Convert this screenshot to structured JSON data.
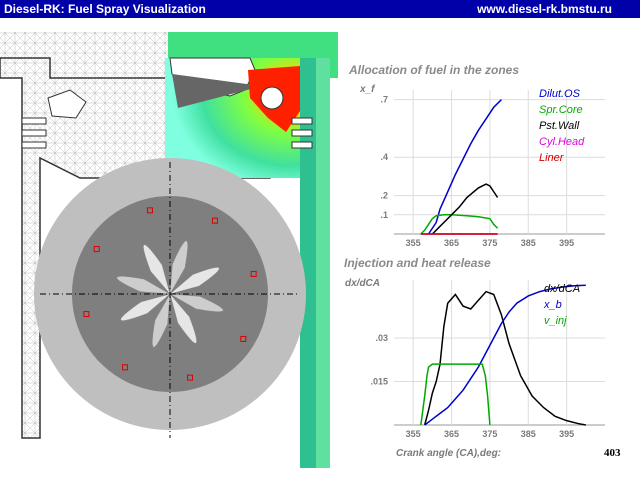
{
  "window": {
    "title": "Diesel-RK: Fuel Spray Visualization",
    "url": "www.diesel-rk.bmstu.ru"
  },
  "status": {
    "current_angle": "403"
  },
  "colors": {
    "titlebar": "#0000a8",
    "dilut_os": "#0000cc",
    "spr_core": "#00aa00",
    "pst_wall": "#000000",
    "cyl_head": "#dd00dd",
    "liner": "#cc0000"
  },
  "chart_data": [
    {
      "type": "line",
      "title": "Allocation of fuel in the zones",
      "xlabel": "",
      "ylabel": "x_f",
      "xlim": [
        350,
        405
      ],
      "ylim": [
        0,
        0.75
      ],
      "x_ticks": [
        "355",
        "365",
        "375",
        "385",
        "395"
      ],
      "y_ticks": [
        ".1",
        ".2",
        ".4",
        ".7"
      ],
      "grid": true,
      "legend_position": "top-right",
      "series": [
        {
          "name": "Dilut.OS",
          "color": "#0000cc",
          "x": [
            359,
            360,
            361,
            362,
            364,
            366,
            368,
            370,
            372,
            374,
            376,
            378
          ],
          "y": [
            0.0,
            0.03,
            0.06,
            0.13,
            0.22,
            0.31,
            0.39,
            0.47,
            0.54,
            0.6,
            0.66,
            0.7
          ]
        },
        {
          "name": "Spr.Core",
          "color": "#00aa00",
          "x": [
            357,
            358,
            359,
            360,
            361,
            363,
            365,
            369,
            372,
            375,
            376,
            377
          ],
          "y": [
            0.0,
            0.02,
            0.05,
            0.08,
            0.095,
            0.1,
            0.1,
            0.095,
            0.09,
            0.08,
            0.05,
            0.03
          ]
        },
        {
          "name": "Pst.Wall",
          "color": "#000000",
          "x": [
            360,
            361,
            362,
            363,
            365,
            367,
            369,
            372,
            374,
            375,
            376,
            377
          ],
          "y": [
            0.0,
            0.02,
            0.04,
            0.06,
            0.1,
            0.14,
            0.19,
            0.24,
            0.26,
            0.25,
            0.22,
            0.19
          ]
        },
        {
          "name": "Cyl.Head",
          "color": "#dd00dd",
          "x": [
            357,
            377
          ],
          "y": [
            0.0,
            0.0
          ]
        },
        {
          "name": "Liner",
          "color": "#cc0000",
          "x": [
            357,
            377
          ],
          "y": [
            0.0,
            0.0
          ]
        }
      ]
    },
    {
      "type": "line",
      "title": "Injection and heat release",
      "xlabel": "Crank angle (CA),deg:",
      "ylabel": "dx/dCA",
      "xlim": [
        350,
        405
      ],
      "ylim": [
        0,
        0.05
      ],
      "x_ticks": [
        "355",
        "365",
        "375",
        "385",
        "395"
      ],
      "y_ticks": [
        ".015",
        ".03"
      ],
      "grid": true,
      "legend_position": "top-right",
      "series": [
        {
          "name": "dx/dCA",
          "color": "#000000",
          "x": [
            358,
            359,
            360,
            361,
            362,
            363,
            364,
            366,
            368,
            370,
            372,
            374,
            376,
            378,
            380,
            383,
            386,
            389,
            392,
            395,
            398,
            400
          ],
          "y": [
            0.0,
            0.005,
            0.011,
            0.015,
            0.021,
            0.034,
            0.042,
            0.045,
            0.041,
            0.04,
            0.043,
            0.046,
            0.045,
            0.038,
            0.028,
            0.017,
            0.01,
            0.006,
            0.003,
            0.0015,
            0.0005,
            0.0
          ]
        },
        {
          "name": "x_b",
          "color": "#0000cc",
          "x": [
            358,
            360,
            362,
            364,
            366,
            368,
            370,
            372,
            374,
            376,
            378,
            380,
            382,
            385,
            388,
            391,
            394,
            397,
            400
          ],
          "y": [
            0.0,
            0.002,
            0.004,
            0.006,
            0.009,
            0.012,
            0.016,
            0.02,
            0.025,
            0.03,
            0.035,
            0.039,
            0.042,
            0.0445,
            0.046,
            0.047,
            0.0476,
            0.048,
            0.0482
          ]
        },
        {
          "name": "v_inj",
          "color": "#00aa00",
          "x": [
            357,
            358,
            358.6,
            359,
            360,
            362,
            370,
            373,
            373.8,
            374.4,
            375
          ],
          "y": [
            0.0,
            0.01,
            0.017,
            0.02,
            0.021,
            0.021,
            0.021,
            0.021,
            0.017,
            0.01,
            0.0
          ]
        }
      ]
    }
  ]
}
